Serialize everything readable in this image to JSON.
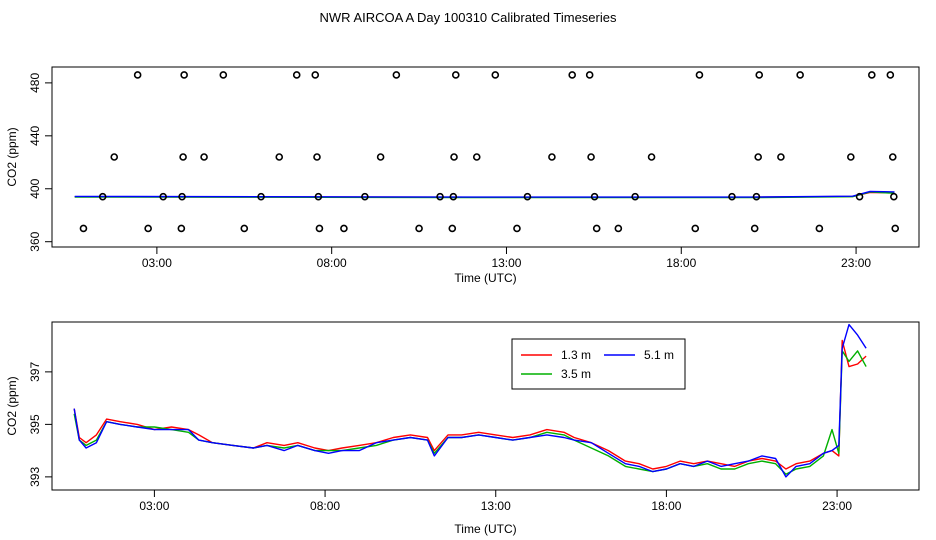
{
  "title": "NWR AIRCOA A  Day 100310  Calibrated Timeseries",
  "chart_data": [
    {
      "type": "scatter",
      "ylabel": "CO2 (ppm)",
      "xlabel": "Time (UTC)",
      "xlim": [
        0.0,
        24.8
      ],
      "ylim": [
        356,
        492
      ],
      "x_ticks": [
        {
          "value": 3,
          "label": "03:00"
        },
        {
          "value": 8,
          "label": "08:00"
        },
        {
          "value": 13,
          "label": "13:00"
        },
        {
          "value": 18,
          "label": "18:00"
        },
        {
          "value": 23,
          "label": "23:00"
        }
      ],
      "y_ticks": [
        {
          "value": 360,
          "label": "360"
        },
        {
          "value": 400,
          "label": "400"
        },
        {
          "value": 440,
          "label": "440"
        },
        {
          "value": 480,
          "label": "480"
        }
      ],
      "points": [
        [
          2.45,
          486
        ],
        [
          3.78,
          486
        ],
        [
          4.9,
          486
        ],
        [
          7.0,
          486
        ],
        [
          7.53,
          486
        ],
        [
          9.85,
          486
        ],
        [
          11.55,
          486
        ],
        [
          12.68,
          486
        ],
        [
          14.88,
          486
        ],
        [
          15.38,
          486
        ],
        [
          18.52,
          486
        ],
        [
          20.23,
          486
        ],
        [
          21.4,
          486
        ],
        [
          23.45,
          486
        ],
        [
          23.98,
          486
        ],
        [
          1.78,
          424
        ],
        [
          3.75,
          424
        ],
        [
          4.35,
          424
        ],
        [
          6.5,
          424
        ],
        [
          7.58,
          424
        ],
        [
          9.4,
          424
        ],
        [
          11.5,
          424
        ],
        [
          12.15,
          424
        ],
        [
          14.3,
          424
        ],
        [
          15.42,
          424
        ],
        [
          17.15,
          424
        ],
        [
          20.2,
          424
        ],
        [
          20.85,
          424
        ],
        [
          22.85,
          424
        ],
        [
          24.05,
          424
        ],
        [
          1.45,
          394
        ],
        [
          3.18,
          394
        ],
        [
          3.72,
          394
        ],
        [
          5.98,
          394
        ],
        [
          7.62,
          394
        ],
        [
          8.95,
          394
        ],
        [
          11.1,
          394
        ],
        [
          11.48,
          394
        ],
        [
          13.6,
          394
        ],
        [
          15.52,
          394
        ],
        [
          16.68,
          394
        ],
        [
          19.45,
          394
        ],
        [
          20.15,
          394
        ],
        [
          23.1,
          394
        ],
        [
          24.08,
          394
        ],
        [
          0.9,
          370
        ],
        [
          2.75,
          370
        ],
        [
          3.7,
          370
        ],
        [
          5.5,
          370
        ],
        [
          7.65,
          370
        ],
        [
          8.35,
          370
        ],
        [
          10.5,
          370
        ],
        [
          11.45,
          370
        ],
        [
          13.3,
          370
        ],
        [
          15.58,
          370
        ],
        [
          16.2,
          370
        ],
        [
          18.4,
          370
        ],
        [
          20.1,
          370
        ],
        [
          21.95,
          370
        ],
        [
          24.12,
          370
        ]
      ],
      "series": [
        {
          "color": "#ff0000",
          "values": [
            [
              0.65,
              394
            ],
            [
              12,
              393.6
            ],
            [
              20,
              393.6
            ],
            [
              22.9,
              394.2
            ],
            [
              23.4,
              397.2
            ],
            [
              24.1,
              397
            ]
          ]
        },
        {
          "color": "#00b000",
          "values": [
            [
              0.65,
              393.8
            ],
            [
              12,
              393.4
            ],
            [
              20,
              393.3
            ],
            [
              22.9,
              394
            ],
            [
              23.4,
              397.6
            ],
            [
              24.1,
              396.6
            ]
          ]
        },
        {
          "color": "#0000ff",
          "values": [
            [
              0.65,
              394.2
            ],
            [
              12,
              393.7
            ],
            [
              20,
              393.7
            ],
            [
              22.9,
              394.4
            ],
            [
              23.4,
              398
            ],
            [
              24.1,
              397.6
            ]
          ]
        }
      ]
    },
    {
      "type": "line",
      "ylabel": "CO2 (ppm)",
      "xlabel": "Time (UTC)",
      "xlim": [
        0.0,
        25.4
      ],
      "ylim": [
        392.5,
        398.9
      ],
      "x_ticks": [
        {
          "value": 3,
          "label": "03:00"
        },
        {
          "value": 8,
          "label": "08:00"
        },
        {
          "value": 13,
          "label": "13:00"
        },
        {
          "value": 18,
          "label": "18:00"
        },
        {
          "value": 23,
          "label": "23:00"
        }
      ],
      "y_ticks": [
        {
          "value": 393,
          "label": "393"
        },
        {
          "value": 395,
          "label": "395"
        },
        {
          "value": 397,
          "label": "397"
        }
      ],
      "legend": {
        "position": "top-right",
        "entries": [
          {
            "label": "1.3 m",
            "color": "#ff0000"
          },
          {
            "label": "3.5 m",
            "color": "#00b000"
          },
          {
            "label": "5.1 m",
            "color": "#0000ff"
          }
        ]
      },
      "series": [
        {
          "name": "1.3 m",
          "color": "#ff0000",
          "values": [
            [
              0.65,
              395.6
            ],
            [
              0.8,
              394.5
            ],
            [
              1.0,
              394.3
            ],
            [
              1.3,
              394.6
            ],
            [
              1.6,
              395.2
            ],
            [
              2.0,
              395.1
            ],
            [
              2.5,
              395.0
            ],
            [
              3.0,
              394.8
            ],
            [
              3.5,
              394.9
            ],
            [
              4.0,
              394.8
            ],
            [
              4.3,
              394.6
            ],
            [
              4.7,
              394.3
            ],
            [
              5.3,
              394.2
            ],
            [
              5.9,
              394.1
            ],
            [
              6.3,
              394.3
            ],
            [
              6.8,
              394.2
            ],
            [
              7.2,
              394.3
            ],
            [
              7.7,
              394.1
            ],
            [
              8.1,
              394.0
            ],
            [
              8.5,
              394.1
            ],
            [
              9.0,
              394.2
            ],
            [
              9.5,
              394.3
            ],
            [
              10.0,
              394.5
            ],
            [
              10.5,
              394.6
            ],
            [
              11.0,
              394.5
            ],
            [
              11.2,
              394.0
            ],
            [
              11.6,
              394.6
            ],
            [
              12.0,
              394.6
            ],
            [
              12.5,
              394.7
            ],
            [
              13.0,
              394.6
            ],
            [
              13.5,
              394.5
            ],
            [
              14.0,
              394.6
            ],
            [
              14.5,
              394.8
            ],
            [
              15.0,
              394.7
            ],
            [
              15.3,
              394.5
            ],
            [
              15.8,
              394.3
            ],
            [
              16.3,
              394.0
            ],
            [
              16.8,
              393.6
            ],
            [
              17.2,
              393.5
            ],
            [
              17.6,
              393.3
            ],
            [
              18.0,
              393.4
            ],
            [
              18.4,
              393.6
            ],
            [
              18.8,
              393.5
            ],
            [
              19.2,
              393.6
            ],
            [
              19.6,
              393.5
            ],
            [
              20.0,
              393.4
            ],
            [
              20.4,
              393.6
            ],
            [
              20.8,
              393.7
            ],
            [
              21.2,
              393.6
            ],
            [
              21.5,
              393.3
            ],
            [
              21.8,
              393.5
            ],
            [
              22.2,
              393.6
            ],
            [
              22.6,
              393.9
            ],
            [
              22.85,
              394.0
            ],
            [
              23.05,
              393.8
            ],
            [
              23.15,
              398.2
            ],
            [
              23.35,
              397.2
            ],
            [
              23.6,
              397.3
            ],
            [
              23.85,
              397.6
            ]
          ]
        },
        {
          "name": "3.5 m",
          "color": "#00b000",
          "values": [
            [
              0.65,
              395.4
            ],
            [
              0.8,
              394.4
            ],
            [
              1.0,
              394.2
            ],
            [
              1.3,
              394.4
            ],
            [
              1.6,
              395.1
            ],
            [
              2.0,
              395.0
            ],
            [
              2.5,
              394.9
            ],
            [
              3.0,
              394.9
            ],
            [
              3.5,
              394.8
            ],
            [
              4.0,
              394.7
            ],
            [
              4.3,
              394.4
            ],
            [
              4.7,
              394.3
            ],
            [
              5.3,
              394.2
            ],
            [
              5.9,
              394.1
            ],
            [
              6.3,
              394.2
            ],
            [
              6.8,
              394.1
            ],
            [
              7.2,
              394.2
            ],
            [
              7.7,
              394.0
            ],
            [
              8.1,
              394.0
            ],
            [
              8.5,
              394.0
            ],
            [
              9.0,
              394.1
            ],
            [
              9.5,
              394.2
            ],
            [
              10.0,
              394.4
            ],
            [
              10.5,
              394.5
            ],
            [
              11.0,
              394.4
            ],
            [
              11.2,
              393.9
            ],
            [
              11.6,
              394.5
            ],
            [
              12.0,
              394.5
            ],
            [
              12.5,
              394.6
            ],
            [
              13.0,
              394.5
            ],
            [
              13.5,
              394.4
            ],
            [
              14.0,
              394.5
            ],
            [
              14.5,
              394.7
            ],
            [
              15.0,
              394.6
            ],
            [
              15.3,
              394.4
            ],
            [
              15.8,
              394.1
            ],
            [
              16.3,
              393.8
            ],
            [
              16.8,
              393.4
            ],
            [
              17.2,
              393.3
            ],
            [
              17.6,
              393.2
            ],
            [
              18.0,
              393.3
            ],
            [
              18.4,
              393.5
            ],
            [
              18.8,
              393.4
            ],
            [
              19.2,
              393.5
            ],
            [
              19.6,
              393.3
            ],
            [
              20.0,
              393.3
            ],
            [
              20.4,
              393.5
            ],
            [
              20.8,
              393.6
            ],
            [
              21.2,
              393.5
            ],
            [
              21.5,
              393.1
            ],
            [
              21.8,
              393.3
            ],
            [
              22.2,
              393.4
            ],
            [
              22.6,
              393.8
            ],
            [
              22.85,
              394.8
            ],
            [
              23.05,
              393.9
            ],
            [
              23.15,
              397.8
            ],
            [
              23.35,
              397.4
            ],
            [
              23.6,
              397.8
            ],
            [
              23.85,
              397.2
            ]
          ]
        },
        {
          "name": "5.1 m",
          "color": "#0000ff",
          "values": [
            [
              0.65,
              395.6
            ],
            [
              0.8,
              394.4
            ],
            [
              1.0,
              394.1
            ],
            [
              1.3,
              394.3
            ],
            [
              1.6,
              395.1
            ],
            [
              2.0,
              395.0
            ],
            [
              2.5,
              394.9
            ],
            [
              3.0,
              394.8
            ],
            [
              3.5,
              394.8
            ],
            [
              4.0,
              394.8
            ],
            [
              4.3,
              394.4
            ],
            [
              4.7,
              394.3
            ],
            [
              5.3,
              394.2
            ],
            [
              5.9,
              394.1
            ],
            [
              6.3,
              394.2
            ],
            [
              6.8,
              394.0
            ],
            [
              7.2,
              394.2
            ],
            [
              7.7,
              394.0
            ],
            [
              8.1,
              393.9
            ],
            [
              8.5,
              394.0
            ],
            [
              9.0,
              394.0
            ],
            [
              9.5,
              394.3
            ],
            [
              10.0,
              394.4
            ],
            [
              10.5,
              394.5
            ],
            [
              11.0,
              394.4
            ],
            [
              11.2,
              393.8
            ],
            [
              11.6,
              394.5
            ],
            [
              12.0,
              394.5
            ],
            [
              12.5,
              394.6
            ],
            [
              13.0,
              394.5
            ],
            [
              13.5,
              394.4
            ],
            [
              14.0,
              394.5
            ],
            [
              14.5,
              394.6
            ],
            [
              15.0,
              394.5
            ],
            [
              15.3,
              394.4
            ],
            [
              15.8,
              394.3
            ],
            [
              16.3,
              393.9
            ],
            [
              16.8,
              393.5
            ],
            [
              17.2,
              393.4
            ],
            [
              17.6,
              393.2
            ],
            [
              18.0,
              393.3
            ],
            [
              18.4,
              393.5
            ],
            [
              18.8,
              393.4
            ],
            [
              19.2,
              393.6
            ],
            [
              19.6,
              393.4
            ],
            [
              20.0,
              393.5
            ],
            [
              20.4,
              393.6
            ],
            [
              20.8,
              393.8
            ],
            [
              21.2,
              393.7
            ],
            [
              21.5,
              393.0
            ],
            [
              21.8,
              393.4
            ],
            [
              22.2,
              393.5
            ],
            [
              22.6,
              393.9
            ],
            [
              22.85,
              394.0
            ],
            [
              23.05,
              394.2
            ],
            [
              23.15,
              397.9
            ],
            [
              23.35,
              398.8
            ],
            [
              23.6,
              398.4
            ],
            [
              23.85,
              397.9
            ]
          ]
        }
      ]
    }
  ]
}
